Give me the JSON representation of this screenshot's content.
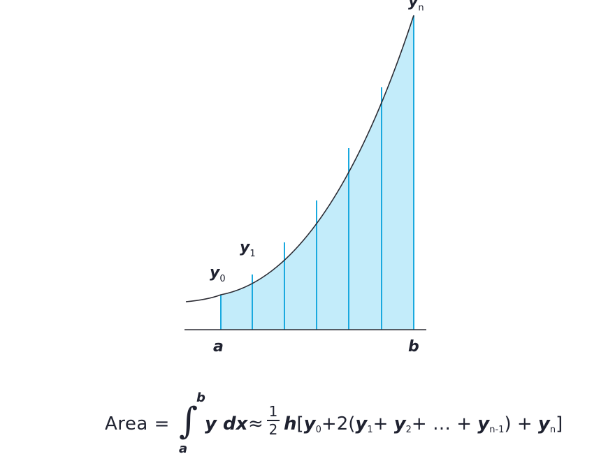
{
  "labels": {
    "y0": {
      "base": "y",
      "sub": "0"
    },
    "y1": {
      "base": "y",
      "sub": "1"
    },
    "yn": {
      "base": "y",
      "sub": "n"
    },
    "a": "a",
    "b": "b"
  },
  "formula": {
    "lhs": "Area =",
    "integral_sign": "∫",
    "upper_limit": "b",
    "lower_limit": "a",
    "integrand": "y dx",
    "approx": "≈",
    "frac_num": "1",
    "frac_den": "2",
    "h": "h",
    "open": "[",
    "y0_base": "y",
    "y0_sub": "0",
    "plus_two": "+2(",
    "y1_base": "y",
    "y1_sub": "1",
    "plus_a": "+",
    "y2_base": "y",
    "y2_sub": "2",
    "dots": "+ … +",
    "yn1_base": "y",
    "yn1_sub": "n-1",
    "close_paren_plus": ") +",
    "yn_base": "y",
    "yn_sub": "n",
    "close": "]"
  },
  "colors": {
    "fill": "#c3ecfa",
    "strip_line": "#19a9df",
    "curve": "#2b2b33",
    "axis": "#2b2b33",
    "text": "#1f2230"
  }
}
